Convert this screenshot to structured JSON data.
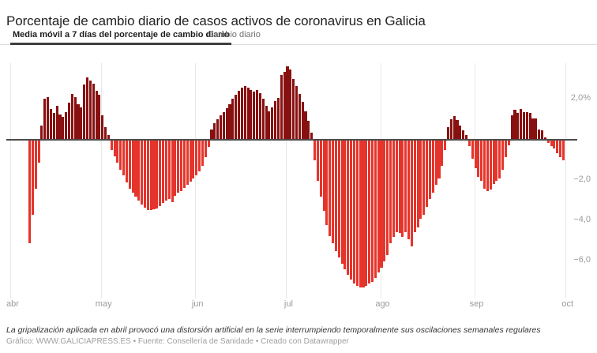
{
  "title": "Porcentaje de cambio diario de casos activos de coronavirus en Galicia",
  "tabs": {
    "active": "Media móvil a 7 días del porcentaje de cambio diario",
    "inactive": "Cambio diario"
  },
  "footer": {
    "note": "La gripalización aplicada en abril provocó una distorsión artificial en la serie interrumpiendo temporalmente sus oscilaciones semanales regulares",
    "credits": "Gráfico: WWW.GALICIAPRESS.ES • Fuente: Consellería de Sanidade • Creado con Datawrapper"
  },
  "chart_data": {
    "type": "bar",
    "title": "Porcentaje de cambio diario de casos activos de coronavirus en Galicia",
    "series_name": "Media móvil a 7 días del porcentaje de cambio diario",
    "unit": "%",
    "x_months": [
      "abr",
      "may",
      "jun",
      "jul",
      "ago",
      "sep",
      "oct"
    ],
    "month_day_offsets": [
      0,
      30,
      61,
      91,
      122,
      153,
      183
    ],
    "first_bar_day_offset": 6,
    "ylim": [
      -7.75,
      3.9
    ],
    "grid": "vertical-months-only",
    "legend": "none",
    "yticks": [
      {
        "label": "2,0%",
        "value": 2.0
      },
      {
        "label": "−2,0",
        "value": -2.0
      },
      {
        "label": "−4,0",
        "value": -4.0
      },
      {
        "label": "−6,0",
        "value": -6.0
      }
    ],
    "colors": {
      "positive": "#871110",
      "negative": "#e5342b",
      "baseline": "#4c4c4c",
      "gridline": "#e7e7e7",
      "tick_text": "#9b9b9b"
    },
    "values": [
      -5.1,
      -3.7,
      -2.4,
      -1.1,
      0.7,
      2.0,
      2.1,
      1.5,
      1.3,
      1.65,
      1.25,
      1.1,
      1.35,
      1.8,
      2.25,
      2.1,
      1.75,
      1.6,
      2.7,
      3.05,
      2.9,
      2.75,
      2.4,
      2.2,
      1.2,
      0.6,
      0.2,
      -0.5,
      -0.8,
      -1.1,
      -1.45,
      -1.75,
      -2.1,
      -2.4,
      -2.6,
      -2.8,
      -3.0,
      -3.2,
      -3.35,
      -3.44,
      -3.44,
      -3.42,
      -3.38,
      -3.25,
      -3.1,
      -3.0,
      -2.9,
      -3.05,
      -2.75,
      -2.6,
      -2.5,
      -2.35,
      -2.2,
      -2.05,
      -1.9,
      -1.75,
      -1.55,
      -1.25,
      -0.85,
      -0.35,
      0.5,
      0.8,
      1.0,
      1.2,
      1.35,
      1.55,
      1.75,
      2.0,
      2.2,
      2.4,
      2.55,
      2.62,
      2.55,
      2.45,
      2.35,
      2.45,
      2.3,
      2.0,
      1.65,
      1.4,
      1.6,
      1.9,
      2.05,
      3.2,
      3.35,
      3.6,
      3.45,
      3.0,
      2.65,
      2.25,
      1.85,
      1.4,
      0.9,
      0.35,
      -1.0,
      -2.0,
      -2.8,
      -3.5,
      -4.2,
      -4.75,
      -5.1,
      -5.5,
      -5.8,
      -6.1,
      -6.4,
      -6.65,
      -6.9,
      -7.1,
      -7.2,
      -7.3,
      -7.3,
      -7.2,
      -7.1,
      -7.0,
      -6.8,
      -6.55,
      -6.3,
      -6.0,
      -5.7,
      -5.1,
      -4.8,
      -4.55,
      -4.6,
      -4.8,
      -4.55,
      -4.9,
      -5.25,
      -4.55,
      -4.3,
      -3.9,
      -3.7,
      -3.3,
      -2.9,
      -2.6,
      -2.2,
      -1.9,
      -1.25,
      -0.5,
      0.6,
      1.0,
      1.15,
      0.95,
      0.7,
      0.45,
      0.2,
      -0.3,
      -0.9,
      -1.4,
      -1.8,
      -2.0,
      -2.4,
      -2.5,
      -2.45,
      -2.15,
      -2.0,
      -1.9,
      -1.45,
      -0.85,
      -0.25,
      1.2,
      1.47,
      1.3,
      1.5,
      1.35,
      1.35,
      1.3,
      1.02,
      1.05,
      0.5,
      0.44,
      0.1,
      -0.15,
      -0.3,
      -0.4,
      -0.66,
      -0.85,
      -0.98
    ]
  }
}
